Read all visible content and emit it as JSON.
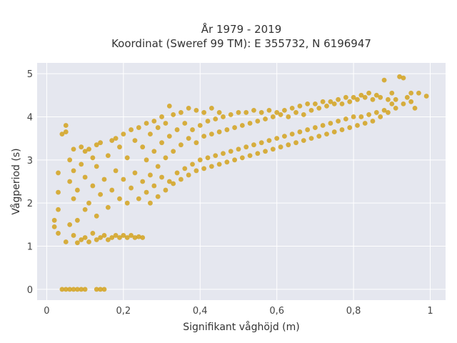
{
  "chart_data": {
    "type": "scatter",
    "title": "År 1979 - 2019",
    "subtitle": "Koordinat (Sweref 99 TM): E 355732, N 6196947",
    "xlabel": "Signifikant våghöjd (m)",
    "ylabel": "Vågperiod (s)",
    "xlim": [
      -0.025,
      1.04
    ],
    "ylim": [
      -0.25,
      5.25
    ],
    "x_ticks": [
      0,
      0.2,
      0.4,
      0.6,
      0.8,
      1
    ],
    "x_tick_labels": [
      "0",
      "0,2",
      "0,4",
      "0,6",
      "0,8",
      "1"
    ],
    "y_ticks": [
      0,
      1,
      2,
      3,
      4,
      5
    ],
    "y_tick_labels": [
      "0",
      "1",
      "2",
      "3",
      "4",
      "5"
    ],
    "grid": true,
    "background": "#e5e7ef",
    "marker_color": "#d4a21d",
    "series": [
      {
        "points": [
          [
            0.04,
            0
          ],
          [
            0.05,
            0
          ],
          [
            0.06,
            0
          ],
          [
            0.07,
            0
          ],
          [
            0.08,
            0
          ],
          [
            0.09,
            0
          ],
          [
            0.1,
            0
          ],
          [
            0.13,
            0
          ],
          [
            0.14,
            0
          ],
          [
            0.15,
            0
          ],
          [
            0.02,
            1.45
          ],
          [
            0.02,
            1.6
          ],
          [
            0.03,
            1.3
          ],
          [
            0.03,
            1.85
          ],
          [
            0.03,
            2.25
          ],
          [
            0.03,
            2.7
          ],
          [
            0.04,
            3.6
          ],
          [
            0.05,
            3.65
          ],
          [
            0.05,
            3.8
          ],
          [
            0.05,
            1.1
          ],
          [
            0.06,
            1.5
          ],
          [
            0.06,
            2.5
          ],
          [
            0.06,
            3.0
          ],
          [
            0.07,
            1.25
          ],
          [
            0.07,
            2.1
          ],
          [
            0.07,
            2.75
          ],
          [
            0.07,
            3.25
          ],
          [
            0.08,
            1.08
          ],
          [
            0.08,
            1.6
          ],
          [
            0.08,
            2.3
          ],
          [
            0.09,
            1.15
          ],
          [
            0.09,
            2.9
          ],
          [
            0.09,
            3.3
          ],
          [
            0.1,
            1.2
          ],
          [
            0.1,
            1.85
          ],
          [
            0.1,
            2.6
          ],
          [
            0.1,
            3.2
          ],
          [
            0.11,
            1.1
          ],
          [
            0.11,
            2.0
          ],
          [
            0.11,
            3.25
          ],
          [
            0.12,
            1.3
          ],
          [
            0.12,
            2.4
          ],
          [
            0.12,
            3.05
          ],
          [
            0.13,
            1.15
          ],
          [
            0.13,
            1.7
          ],
          [
            0.13,
            2.85
          ],
          [
            0.13,
            3.35
          ],
          [
            0.14,
            1.2
          ],
          [
            0.14,
            2.2
          ],
          [
            0.14,
            3.4
          ],
          [
            0.15,
            1.25
          ],
          [
            0.15,
            2.55
          ],
          [
            0.16,
            1.15
          ],
          [
            0.16,
            1.9
          ],
          [
            0.16,
            3.1
          ],
          [
            0.17,
            1.2
          ],
          [
            0.17,
            2.3
          ],
          [
            0.17,
            3.45
          ],
          [
            0.18,
            1.25
          ],
          [
            0.18,
            2.75
          ],
          [
            0.18,
            3.5
          ],
          [
            0.19,
            1.2
          ],
          [
            0.19,
            2.1
          ],
          [
            0.19,
            3.3
          ],
          [
            0.2,
            1.25
          ],
          [
            0.2,
            2.55
          ],
          [
            0.2,
            3.6
          ],
          [
            0.21,
            1.2
          ],
          [
            0.21,
            2.0
          ],
          [
            0.21,
            3.05
          ],
          [
            0.22,
            1.25
          ],
          [
            0.22,
            2.35
          ],
          [
            0.22,
            3.7
          ],
          [
            0.23,
            1.2
          ],
          [
            0.23,
            2.7
          ],
          [
            0.23,
            3.45
          ],
          [
            0.24,
            1.22
          ],
          [
            0.24,
            2.1
          ],
          [
            0.24,
            3.75
          ],
          [
            0.25,
            1.2
          ],
          [
            0.25,
            2.5
          ],
          [
            0.25,
            3.3
          ],
          [
            0.26,
            2.25
          ],
          [
            0.26,
            3.0
          ],
          [
            0.26,
            3.85
          ],
          [
            0.27,
            2.0
          ],
          [
            0.27,
            2.65
          ],
          [
            0.27,
            3.6
          ],
          [
            0.28,
            2.4
          ],
          [
            0.28,
            3.2
          ],
          [
            0.28,
            3.9
          ],
          [
            0.29,
            2.15
          ],
          [
            0.29,
            2.85
          ],
          [
            0.29,
            3.75
          ],
          [
            0.3,
            2.6
          ],
          [
            0.3,
            3.4
          ],
          [
            0.3,
            4.0
          ],
          [
            0.31,
            2.3
          ],
          [
            0.31,
            3.05
          ],
          [
            0.31,
            3.85
          ],
          [
            0.32,
            2.5
          ],
          [
            0.32,
            3.55
          ],
          [
            0.32,
            4.25
          ],
          [
            0.33,
            2.45
          ],
          [
            0.33,
            3.2
          ],
          [
            0.33,
            4.05
          ],
          [
            0.34,
            2.7
          ],
          [
            0.34,
            3.7
          ],
          [
            0.35,
            2.55
          ],
          [
            0.35,
            3.35
          ],
          [
            0.35,
            4.1
          ],
          [
            0.36,
            2.8
          ],
          [
            0.36,
            3.85
          ],
          [
            0.37,
            2.65
          ],
          [
            0.37,
            3.5
          ],
          [
            0.37,
            4.2
          ],
          [
            0.38,
            2.9
          ],
          [
            0.38,
            3.7
          ],
          [
            0.39,
            2.75
          ],
          [
            0.39,
            3.4
          ],
          [
            0.39,
            4.15
          ],
          [
            0.4,
            3.0
          ],
          [
            0.4,
            3.8
          ],
          [
            0.41,
            2.8
          ],
          [
            0.41,
            3.55
          ],
          [
            0.41,
            4.1
          ],
          [
            0.42,
            3.05
          ],
          [
            0.42,
            3.9
          ],
          [
            0.43,
            2.85
          ],
          [
            0.43,
            3.6
          ],
          [
            0.43,
            4.2
          ],
          [
            0.44,
            3.1
          ],
          [
            0.44,
            3.95
          ],
          [
            0.45,
            2.9
          ],
          [
            0.45,
            3.65
          ],
          [
            0.45,
            4.1
          ],
          [
            0.46,
            3.15
          ],
          [
            0.46,
            4.0
          ],
          [
            0.47,
            2.95
          ],
          [
            0.47,
            3.7
          ],
          [
            0.48,
            3.2
          ],
          [
            0.48,
            4.05
          ],
          [
            0.49,
            3.0
          ],
          [
            0.49,
            3.75
          ],
          [
            0.5,
            3.25
          ],
          [
            0.5,
            4.1
          ],
          [
            0.51,
            3.05
          ],
          [
            0.51,
            3.8
          ],
          [
            0.52,
            3.3
          ],
          [
            0.52,
            4.1
          ],
          [
            0.53,
            3.1
          ],
          [
            0.53,
            3.85
          ],
          [
            0.54,
            3.35
          ],
          [
            0.54,
            4.15
          ],
          [
            0.55,
            3.15
          ],
          [
            0.55,
            3.9
          ],
          [
            0.56,
            3.4
          ],
          [
            0.56,
            4.1
          ],
          [
            0.57,
            3.2
          ],
          [
            0.57,
            3.95
          ],
          [
            0.58,
            3.45
          ],
          [
            0.58,
            4.15
          ],
          [
            0.59,
            3.25
          ],
          [
            0.59,
            4.0
          ],
          [
            0.6,
            3.5
          ],
          [
            0.6,
            4.1
          ],
          [
            0.61,
            3.3
          ],
          [
            0.61,
            4.05
          ],
          [
            0.62,
            3.55
          ],
          [
            0.62,
            4.15
          ],
          [
            0.63,
            3.35
          ],
          [
            0.63,
            4.0
          ],
          [
            0.64,
            3.6
          ],
          [
            0.64,
            4.2
          ],
          [
            0.65,
            3.4
          ],
          [
            0.65,
            4.1
          ],
          [
            0.66,
            3.65
          ],
          [
            0.66,
            4.25
          ],
          [
            0.67,
            3.45
          ],
          [
            0.67,
            4.05
          ],
          [
            0.68,
            3.7
          ],
          [
            0.68,
            4.3
          ],
          [
            0.69,
            3.5
          ],
          [
            0.69,
            4.15
          ],
          [
            0.7,
            3.75
          ],
          [
            0.7,
            4.3
          ],
          [
            0.71,
            3.55
          ],
          [
            0.71,
            4.2
          ],
          [
            0.72,
            3.8
          ],
          [
            0.72,
            4.35
          ],
          [
            0.73,
            3.6
          ],
          [
            0.73,
            4.25
          ],
          [
            0.74,
            3.85
          ],
          [
            0.74,
            4.35
          ],
          [
            0.75,
            3.65
          ],
          [
            0.75,
            4.3
          ],
          [
            0.76,
            3.9
          ],
          [
            0.76,
            4.4
          ],
          [
            0.77,
            3.7
          ],
          [
            0.77,
            4.3
          ],
          [
            0.78,
            3.95
          ],
          [
            0.78,
            4.45
          ],
          [
            0.79,
            3.75
          ],
          [
            0.79,
            4.35
          ],
          [
            0.8,
            4.0
          ],
          [
            0.8,
            4.45
          ],
          [
            0.81,
            3.8
          ],
          [
            0.81,
            4.4
          ],
          [
            0.82,
            4.0
          ],
          [
            0.82,
            4.5
          ],
          [
            0.83,
            3.85
          ],
          [
            0.83,
            4.45
          ],
          [
            0.84,
            4.05
          ],
          [
            0.84,
            4.55
          ],
          [
            0.85,
            3.9
          ],
          [
            0.85,
            4.4
          ],
          [
            0.86,
            4.1
          ],
          [
            0.86,
            4.5
          ],
          [
            0.87,
            4.0
          ],
          [
            0.87,
            4.45
          ],
          [
            0.88,
            4.15
          ],
          [
            0.88,
            4.85
          ],
          [
            0.89,
            4.1
          ],
          [
            0.89,
            4.4
          ],
          [
            0.9,
            4.3
          ],
          [
            0.9,
            4.55
          ],
          [
            0.91,
            4.2
          ],
          [
            0.91,
            4.4
          ],
          [
            0.92,
            4.93
          ],
          [
            0.93,
            4.3
          ],
          [
            0.93,
            4.9
          ],
          [
            0.94,
            4.45
          ],
          [
            0.95,
            4.35
          ],
          [
            0.95,
            4.55
          ],
          [
            0.96,
            4.2
          ],
          [
            0.97,
            4.55
          ],
          [
            0.99,
            4.48
          ]
        ]
      }
    ]
  }
}
